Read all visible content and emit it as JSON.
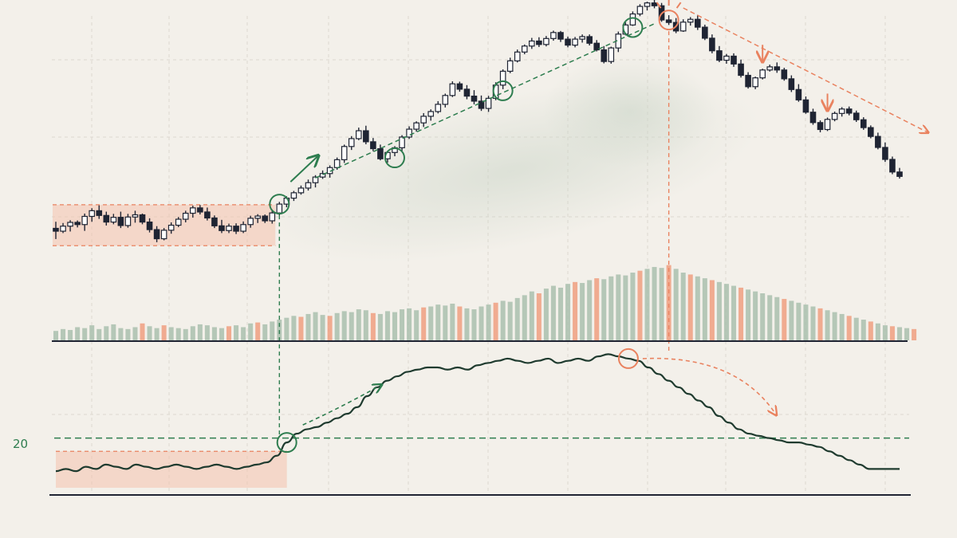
{
  "chart_data": [
    {
      "type": "candlestick",
      "title": "",
      "xlabel": "",
      "ylabel": "",
      "grid": true,
      "ylim": [
        0,
        100
      ],
      "trend_phases": [
        "range",
        "uptrend",
        "peak",
        "downtrend"
      ],
      "candles": [
        {
          "o": 30.0,
          "h": 32.1,
          "l": 26.6,
          "c": 29.1
        },
        {
          "o": 29.1,
          "h": 31.7,
          "l": 28.5,
          "c": 30.7
        },
        {
          "o": 30.7,
          "h": 32.6,
          "l": 29.0,
          "c": 31.9
        },
        {
          "o": 31.9,
          "h": 32.5,
          "l": 30.3,
          "c": 31.2
        },
        {
          "o": 31.2,
          "h": 34.7,
          "l": 29.2,
          "c": 33.8
        },
        {
          "o": 33.8,
          "h": 36.4,
          "l": 32.1,
          "c": 35.6
        },
        {
          "o": 35.6,
          "h": 37.3,
          "l": 33.0,
          "c": 34.1
        },
        {
          "o": 34.1,
          "h": 35.3,
          "l": 30.9,
          "c": 32.0
        },
        {
          "o": 32.0,
          "h": 34.6,
          "l": 31.3,
          "c": 33.5
        },
        {
          "o": 33.5,
          "h": 35.3,
          "l": 30.1,
          "c": 30.9
        },
        {
          "o": 30.9,
          "h": 34.6,
          "l": 30.2,
          "c": 33.6
        },
        {
          "o": 33.6,
          "h": 35.6,
          "l": 31.8,
          "c": 34.3
        },
        {
          "o": 34.3,
          "h": 34.7,
          "l": 31.3,
          "c": 32.0
        },
        {
          "o": 32.0,
          "h": 33.2,
          "l": 28.7,
          "c": 29.6
        },
        {
          "o": 29.6,
          "h": 30.7,
          "l": 25.6,
          "c": 26.7
        },
        {
          "o": 26.7,
          "h": 30.1,
          "l": 26.2,
          "c": 29.4
        },
        {
          "o": 29.4,
          "h": 31.9,
          "l": 28.3,
          "c": 31.0
        },
        {
          "o": 31.0,
          "h": 33.6,
          "l": 30.4,
          "c": 32.9
        },
        {
          "o": 32.9,
          "h": 35.6,
          "l": 31.9,
          "c": 34.8
        },
        {
          "o": 34.8,
          "h": 37.2,
          "l": 33.4,
          "c": 36.5
        },
        {
          "o": 36.5,
          "h": 37.4,
          "l": 34.4,
          "c": 35.2
        },
        {
          "o": 35.2,
          "h": 36.6,
          "l": 32.5,
          "c": 33.3
        },
        {
          "o": 33.3,
          "h": 34.1,
          "l": 30.1,
          "c": 30.8
        },
        {
          "o": 30.8,
          "h": 32.7,
          "l": 28.5,
          "c": 29.3
        },
        {
          "o": 29.3,
          "h": 31.5,
          "l": 28.5,
          "c": 30.7
        },
        {
          "o": 30.7,
          "h": 31.6,
          "l": 28.2,
          "c": 29.1
        },
        {
          "o": 29.1,
          "h": 32.2,
          "l": 28.5,
          "c": 31.2
        },
        {
          "o": 31.2,
          "h": 34.0,
          "l": 30.2,
          "c": 33.2
        },
        {
          "o": 33.2,
          "h": 34.5,
          "l": 31.7,
          "c": 33.9
        },
        {
          "o": 33.9,
          "h": 34.4,
          "l": 31.7,
          "c": 32.4
        },
        {
          "o": 32.4,
          "h": 35.6,
          "l": 31.5,
          "c": 34.9
        },
        {
          "o": 34.9,
          "h": 38.4,
          "l": 34.1,
          "c": 37.7
        },
        {
          "o": 37.7,
          "h": 40.2,
          "l": 36.7,
          "c": 39.6
        },
        {
          "o": 39.6,
          "h": 41.9,
          "l": 38.7,
          "c": 41.3
        },
        {
          "o": 41.3,
          "h": 43.6,
          "l": 40.7,
          "c": 42.8
        },
        {
          "o": 42.8,
          "h": 45.5,
          "l": 42.0,
          "c": 44.5
        },
        {
          "o": 44.5,
          "h": 46.9,
          "l": 43.0,
          "c": 46.3
        },
        {
          "o": 46.3,
          "h": 48.4,
          "l": 45.7,
          "c": 47.4
        },
        {
          "o": 47.4,
          "h": 50.0,
          "l": 46.1,
          "c": 49.3
        },
        {
          "o": 49.3,
          "h": 52.5,
          "l": 48.6,
          "c": 51.8
        },
        {
          "o": 51.8,
          "h": 56.6,
          "l": 50.8,
          "c": 56.0
        },
        {
          "o": 56.0,
          "h": 59.3,
          "l": 54.9,
          "c": 58.5
        },
        {
          "o": 58.5,
          "h": 62.0,
          "l": 58.0,
          "c": 61.0
        },
        {
          "o": 61.0,
          "h": 62.6,
          "l": 56.7,
          "c": 57.5
        },
        {
          "o": 57.5,
          "h": 58.7,
          "l": 54.5,
          "c": 55.3
        },
        {
          "o": 55.3,
          "h": 56.6,
          "l": 51.6,
          "c": 52.1
        },
        {
          "o": 52.1,
          "h": 54.6,
          "l": 50.9,
          "c": 54.1
        },
        {
          "o": 54.1,
          "h": 56.1,
          "l": 52.9,
          "c": 55.6
        },
        {
          "o": 55.6,
          "h": 59.6,
          "l": 54.6,
          "c": 59.0
        },
        {
          "o": 59.0,
          "h": 62.4,
          "l": 58.4,
          "c": 61.5
        },
        {
          "o": 61.5,
          "h": 64.0,
          "l": 60.7,
          "c": 63.5
        },
        {
          "o": 63.5,
          "h": 66.6,
          "l": 62.2,
          "c": 65.6
        },
        {
          "o": 65.6,
          "h": 67.8,
          "l": 64.2,
          "c": 67.1
        },
        {
          "o": 67.1,
          "h": 70.4,
          "l": 66.5,
          "c": 69.4
        },
        {
          "o": 69.4,
          "h": 72.8,
          "l": 68.4,
          "c": 72.2
        },
        {
          "o": 72.2,
          "h": 76.7,
          "l": 71.7,
          "c": 75.9
        },
        {
          "o": 75.9,
          "h": 76.6,
          "l": 73.4,
          "c": 74.2
        },
        {
          "o": 74.2,
          "h": 75.5,
          "l": 71.0,
          "c": 72.0
        },
        {
          "o": 72.0,
          "h": 73.9,
          "l": 69.4,
          "c": 70.4
        },
        {
          "o": 70.4,
          "h": 72.2,
          "l": 67.3,
          "c": 68.1
        },
        {
          "o": 68.1,
          "h": 72.1,
          "l": 67.0,
          "c": 71.3
        },
        {
          "o": 71.3,
          "h": 76.4,
          "l": 70.7,
          "c": 75.5
        },
        {
          "o": 75.5,
          "h": 80.5,
          "l": 74.2,
          "c": 79.9
        },
        {
          "o": 79.9,
          "h": 84.2,
          "l": 79.3,
          "c": 83.2
        },
        {
          "o": 83.2,
          "h": 86.8,
          "l": 82.7,
          "c": 86.0
        },
        {
          "o": 86.0,
          "h": 88.4,
          "l": 85.3,
          "c": 87.9
        },
        {
          "o": 87.9,
          "h": 90.5,
          "l": 87.0,
          "c": 89.5
        },
        {
          "o": 89.5,
          "h": 90.7,
          "l": 87.6,
          "c": 88.4
        },
        {
          "o": 88.4,
          "h": 91.1,
          "l": 87.8,
          "c": 90.3
        },
        {
          "o": 90.3,
          "h": 92.8,
          "l": 89.6,
          "c": 92.2
        },
        {
          "o": 92.2,
          "h": 92.7,
          "l": 89.2,
          "c": 90.1
        },
        {
          "o": 90.1,
          "h": 90.9,
          "l": 87.5,
          "c": 88.2
        },
        {
          "o": 88.2,
          "h": 90.8,
          "l": 87.5,
          "c": 90.1
        },
        {
          "o": 90.1,
          "h": 91.6,
          "l": 89.0,
          "c": 90.9
        },
        {
          "o": 90.9,
          "h": 91.6,
          "l": 88.1,
          "c": 88.8
        },
        {
          "o": 88.8,
          "h": 89.8,
          "l": 86.2,
          "c": 86.7
        },
        {
          "o": 86.7,
          "h": 87.9,
          "l": 82.4,
          "c": 83.0
        },
        {
          "o": 83.0,
          "h": 87.7,
          "l": 82.3,
          "c": 87.3
        },
        {
          "o": 87.3,
          "h": 92.5,
          "l": 86.0,
          "c": 91.7
        },
        {
          "o": 91.7,
          "h": 95.4,
          "l": 91.3,
          "c": 94.6
        },
        {
          "o": 94.6,
          "h": 98.9,
          "l": 94.3,
          "c": 98.1
        },
        {
          "o": 98.1,
          "h": 101.2,
          "l": 97.4,
          "c": 100.5
        },
        {
          "o": 100.5,
          "h": 102.0,
          "l": 99.2,
          "c": 101.6
        },
        {
          "o": 101.6,
          "h": 103.7,
          "l": 99.9,
          "c": 100.7
        },
        {
          "o": 100.7,
          "h": 101.6,
          "l": 95.6,
          "c": 96.2
        },
        {
          "o": 96.2,
          "h": 97.7,
          "l": 94.6,
          "c": 95.4
        },
        {
          "o": 95.4,
          "h": 96.8,
          "l": 92.0,
          "c": 92.7
        },
        {
          "o": 92.7,
          "h": 96.4,
          "l": 92.4,
          "c": 95.5
        },
        {
          "o": 95.5,
          "h": 97.1,
          "l": 94.4,
          "c": 96.4
        },
        {
          "o": 96.4,
          "h": 97.8,
          "l": 93.0,
          "c": 93.9
        },
        {
          "o": 93.9,
          "h": 94.7,
          "l": 89.8,
          "c": 90.4
        },
        {
          "o": 90.4,
          "h": 91.6,
          "l": 85.6,
          "c": 86.4
        },
        {
          "o": 86.4,
          "h": 87.9,
          "l": 82.8,
          "c": 83.4
        },
        {
          "o": 83.4,
          "h": 85.4,
          "l": 82.3,
          "c": 84.7
        },
        {
          "o": 84.7,
          "h": 85.6,
          "l": 81.3,
          "c": 82.2
        },
        {
          "o": 82.2,
          "h": 83.6,
          "l": 77.9,
          "c": 78.6
        },
        {
          "o": 78.6,
          "h": 79.6,
          "l": 74.4,
          "c": 75.0
        },
        {
          "o": 75.0,
          "h": 78.2,
          "l": 74.2,
          "c": 77.8
        },
        {
          "o": 77.8,
          "h": 80.7,
          "l": 77.3,
          "c": 80.3
        },
        {
          "o": 80.3,
          "h": 82.0,
          "l": 79.8,
          "c": 81.3
        },
        {
          "o": 81.3,
          "h": 82.7,
          "l": 79.4,
          "c": 80.3
        },
        {
          "o": 80.3,
          "h": 81.0,
          "l": 76.9,
          "c": 77.5
        },
        {
          "o": 77.5,
          "h": 78.6,
          "l": 73.3,
          "c": 74.1
        },
        {
          "o": 74.1,
          "h": 75.8,
          "l": 70.2,
          "c": 70.8
        },
        {
          "o": 70.8,
          "h": 71.9,
          "l": 66.4,
          "c": 66.9
        },
        {
          "o": 66.9,
          "h": 68.0,
          "l": 62.9,
          "c": 63.6
        },
        {
          "o": 63.6,
          "h": 64.3,
          "l": 60.5,
          "c": 61.4
        },
        {
          "o": 61.4,
          "h": 65.2,
          "l": 60.9,
          "c": 64.6
        },
        {
          "o": 64.6,
          "h": 67.1,
          "l": 64.0,
          "c": 66.5
        },
        {
          "o": 66.5,
          "h": 68.5,
          "l": 65.5,
          "c": 67.9
        },
        {
          "o": 67.9,
          "h": 68.7,
          "l": 65.9,
          "c": 66.6
        },
        {
          "o": 66.6,
          "h": 67.4,
          "l": 63.8,
          "c": 64.5
        },
        {
          "o": 64.5,
          "h": 65.3,
          "l": 61.3,
          "c": 62.0
        },
        {
          "o": 62.0,
          "h": 62.7,
          "l": 58.6,
          "c": 59.2
        },
        {
          "o": 59.2,
          "h": 60.4,
          "l": 55.1,
          "c": 55.7
        },
        {
          "o": 55.7,
          "h": 57.3,
          "l": 51.1,
          "c": 51.9
        },
        {
          "o": 51.9,
          "h": 52.8,
          "l": 47.2,
          "c": 47.9
        },
        {
          "o": 47.9,
          "h": 49.2,
          "l": 45.8,
          "c": 46.5
        }
      ],
      "annotations": {
        "consolidation_range": {
          "from_index": 0,
          "to_index": 30,
          "high": 37.5,
          "low": 24.5
        },
        "breakout_index": 31,
        "pullback_indices": [
          47,
          62,
          80
        ],
        "uptrend_line": [
          {
            "index": 36,
            "value": 46.0
          },
          {
            "index": 83,
            "value": 95.0
          }
        ],
        "peak_index": 85,
        "downtrend_arrow_indices": [
          98,
          107
        ],
        "downtrend_line": [
          {
            "index": 87,
            "value": 100.0
          },
          {
            "index": 120,
            "value": 60.0
          }
        ]
      }
    },
    {
      "type": "bar",
      "title": "",
      "xlabel": "",
      "ylabel": "",
      "ylim": [
        0,
        100
      ],
      "series": [
        {
          "color": "#a9bfae",
          "values": [
            10,
            12,
            11,
            14,
            13,
            16,
            12,
            15,
            17,
            13,
            12,
            14,
            18,
            15,
            13,
            16,
            14,
            13,
            12,
            15,
            17,
            16,
            14,
            13,
            15,
            16,
            14,
            18,
            19,
            17,
            20,
            22,
            24,
            26,
            25,
            28,
            30,
            27,
            26,
            29,
            31,
            30,
            33,
            32,
            29,
            28,
            31,
            30,
            33,
            34,
            32,
            35,
            36,
            38,
            37,
            39,
            36,
            34,
            33,
            36,
            38,
            40,
            42,
            41,
            45,
            48,
            52,
            50,
            55,
            58,
            56,
            60,
            62,
            61,
            64,
            66,
            65,
            68,
            70,
            69,
            72,
            74,
            76,
            78,
            77,
            80,
            76,
            72,
            70,
            68,
            66,
            64,
            62,
            60,
            58,
            56,
            54,
            52,
            50,
            48,
            46,
            44,
            42,
            40,
            38,
            36,
            34,
            32,
            30,
            28,
            26,
            24,
            22,
            20,
            18,
            16,
            15,
            14,
            13,
            12
          ],
          "highlight_indices": [
            12,
            15,
            24,
            28,
            34,
            38,
            44,
            51,
            56,
            61,
            67,
            72,
            75,
            81,
            85,
            88,
            91,
            95,
            101,
            106,
            110,
            113,
            116,
            119
          ],
          "highlight_color": "#ef9f80"
        }
      ]
    },
    {
      "type": "line",
      "title": "",
      "xlabel": "",
      "ylabel": "",
      "ylim": [
        0,
        65
      ],
      "reference_lines": [
        {
          "value": 20,
          "label": "20",
          "color": "#2e7d4f",
          "style": "dashed"
        },
        {
          "value": 14,
          "color": "#e9825f",
          "style": "dashed"
        }
      ],
      "series": [
        {
          "color": "#1f3b2f",
          "values": [
            5,
            6,
            5,
            7,
            6,
            8,
            7,
            6,
            8,
            7,
            6,
            7,
            8,
            7,
            6,
            7,
            8,
            7,
            6,
            7,
            8,
            9,
            12,
            18,
            22,
            24,
            25,
            27,
            29,
            31,
            34,
            39,
            43,
            46,
            48,
            50,
            51,
            52,
            52,
            51,
            52,
            51,
            53,
            54,
            55,
            56,
            55,
            54,
            55,
            56,
            54,
            55,
            56,
            55,
            57,
            58,
            57,
            56,
            55,
            52,
            49,
            46,
            43,
            40,
            37,
            34,
            30,
            27,
            24,
            22,
            21,
            20,
            19,
            18,
            18,
            17,
            16,
            14,
            12,
            10,
            8,
            6,
            6,
            6,
            6
          ]
        }
      ],
      "annotations": {
        "cross_index": 23,
        "peak_index": 57
      }
    }
  ]
}
